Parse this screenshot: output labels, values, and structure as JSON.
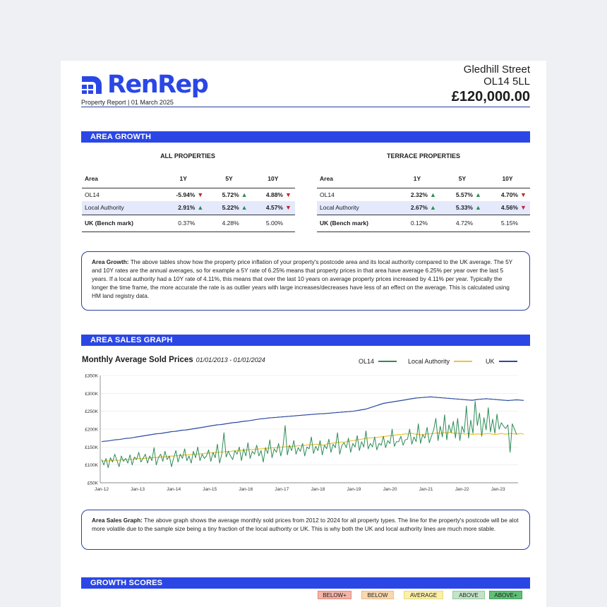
{
  "header": {
    "brand": "RenRep",
    "subtitle": "Property Report | 01 March 2025",
    "street": "Gledhill Street",
    "postcode": "OL14 5LL",
    "price": "£120,000.00",
    "brand_color": "#2a47e6"
  },
  "area_growth": {
    "banner": "AREA GROWTH",
    "tables": [
      {
        "title": "ALL PROPERTIES",
        "columns": [
          "Area",
          "1Y",
          "5Y",
          "10Y"
        ],
        "rows": [
          {
            "area": "OL14",
            "y1": "-5.94%",
            "y1_dir": "down",
            "y5": "5.72%",
            "y5_dir": "up",
            "y10": "4.88%",
            "y10_dir": "down"
          },
          {
            "area": "Local Authority",
            "y1": "2.91%",
            "y1_dir": "up",
            "y5": "5.22%",
            "y5_dir": "up",
            "y10": "4.57%",
            "y10_dir": "down"
          }
        ],
        "benchmark": {
          "area": "UK (Bench mark)",
          "y1": "0.37%",
          "y5": "4.28%",
          "y10": "5.00%"
        }
      },
      {
        "title": "TERRACE PROPERTIES",
        "columns": [
          "Area",
          "1Y",
          "5Y",
          "10Y"
        ],
        "rows": [
          {
            "area": "OL14",
            "y1": "2.32%",
            "y1_dir": "up",
            "y5": "5.57%",
            "y5_dir": "up",
            "y10": "4.70%",
            "y10_dir": "down"
          },
          {
            "area": "Local Authority",
            "y1": "2.67%",
            "y1_dir": "up",
            "y5": "5.33%",
            "y5_dir": "up",
            "y10": "4.56%",
            "y10_dir": "down"
          }
        ],
        "benchmark": {
          "area": "UK (Bench mark)",
          "y1": "0.12%",
          "y5": "4.72%",
          "y10": "5.15%"
        }
      }
    ],
    "note_lead": "Area Growth:",
    "note_text": " The above tables show how the property price inflation of your property's postcode area and its local authority compared to the UK average. The 5Y and 10Y rates are the annual averages, so for example a 5Y rate of 6.25% means that property prices in that area have average 6.25% per year over the last 5 years. If a local authority had a 10Y rate of 4.11%, this means that over the last 10 years on average property prices increased by 4.11% per year. Typically the longer the time frame, the more accurate the rate is as outlier years with large increases/decreases have less of an effect on the average. This is calculated using HM land registry data."
  },
  "sales_graph": {
    "banner": "AREA SALES GRAPH",
    "title": "Monthly Average Sold Prices",
    "range": "01/01/2013 - 01/01/2024",
    "note_lead": "Area Sales Graph:",
    "note_text": " The above graph shows the average monthly sold prices from 2012 to 2024 for all property types. The line for the property's postcode will be alot more volatile due to the sample size being a tiny fraction of the local authority or UK. This is why both the UK and local authority lines are much more stable."
  },
  "chart_data": {
    "type": "line",
    "x_labels": [
      "Jan-12",
      "Jan-13",
      "Jan-14",
      "Jan-15",
      "Jan-16",
      "Jan-17",
      "Jan-18",
      "Jan-19",
      "Jan-20",
      "Jan-21",
      "Jan-22",
      "Jan-23"
    ],
    "y_ticks": [
      "£50K",
      "£100K",
      "£150K",
      "£200K",
      "£250K",
      "£300K",
      "£350K"
    ],
    "ylim": [
      50000,
      350000
    ],
    "legend_position": "top-right",
    "series": [
      {
        "name": "OL14",
        "color": "#2e8b57",
        "values": [
          115000,
          100000,
          118000,
          92000,
          120000,
          108000,
          130000,
          112000,
          95000,
          125000,
          110000,
          118000,
          105000,
          128000,
          100000,
          122000,
          115000,
          135000,
          108000,
          118000,
          130000,
          105000,
          125000,
          112000,
          148000,
          100000,
          120000,
          130000,
          110000,
          138000,
          115000,
          125000,
          95000,
          120000,
          140000,
          108000,
          130000,
          118000,
          145000,
          112000,
          125000,
          105000,
          138000,
          120000,
          150000,
          112000,
          130000,
          118000,
          125000,
          142000,
          110000,
          135000,
          120000,
          158000,
          105000,
          130000,
          190000,
          122000,
          138000,
          125000,
          115000,
          140000,
          130000,
          150000,
          112000,
          145000,
          125000,
          162000,
          118000,
          138000,
          130000,
          155000,
          125000,
          140000,
          108000,
          148000,
          132000,
          170000,
          120000,
          145000,
          135000,
          160000,
          125000,
          150000,
          210000,
          128000,
          155000,
          140000,
          168000,
          130000,
          148000,
          138000,
          160000,
          125000,
          150000,
          145000,
          178000,
          132000,
          152000,
          140000,
          168000,
          128000,
          155000,
          145000,
          172000,
          135000,
          158000,
          148000,
          190000,
          130000,
          155000,
          162000,
          148000,
          175000,
          135000,
          160000,
          150000,
          182000,
          140000,
          165000,
          150000,
          195000,
          145000,
          160000,
          150000,
          178000,
          142000,
          160000,
          155000,
          180000,
          148000,
          168000,
          160000,
          200000,
          152000,
          165000,
          165000,
          180000,
          155000,
          170000,
          172000,
          200000,
          158000,
          178000,
          165000,
          215000,
          160000,
          185000,
          175000,
          205000,
          162000,
          180000,
          198000,
          230000,
          168000,
          208000,
          178000,
          240000,
          170000,
          212000,
          190000,
          222000,
          175000,
          230000,
          168000,
          208000,
          190000,
          265000,
          175000,
          225000,
          188000,
          278000,
          210000,
          245000,
          180000,
          232000,
          198000,
          260000,
          192000,
          228000,
          188000,
          242000,
          200000,
          218000,
          208000,
          202000,
          212000,
          135000,
          215000,
          200000,
          185000
        ]
      },
      {
        "name": "Local Authority",
        "color": "#f2c230",
        "values": [
          110000,
          111000,
          112000,
          110500,
          113000,
          112000,
          114000,
          113000,
          112500,
          115000,
          114000,
          115500,
          114500,
          116000,
          115000,
          117000,
          116500,
          118000,
          117000,
          118500,
          118000,
          119500,
          119000,
          120000,
          121000,
          120000,
          122000,
          121500,
          123000,
          122500,
          124000,
          123000,
          125000,
          124500,
          126000,
          125500,
          127000,
          126500,
          128000,
          127500,
          129000,
          128500,
          130000,
          129500,
          131000,
          130500,
          132000,
          131500,
          133000,
          132500,
          134000,
          133500,
          135000,
          134500,
          136000,
          135500,
          137000,
          136500,
          138000,
          137500,
          139000,
          138500,
          140000,
          139500,
          141000,
          140500,
          142000,
          141500,
          143000,
          142500,
          144000,
          143500,
          145000,
          144500,
          146000,
          145500,
          147000,
          146500,
          148000,
          147500,
          149000,
          148500,
          150000,
          149500,
          151000,
          150500,
          152000,
          151500,
          153000,
          152500,
          154000,
          153500,
          155000,
          154500,
          156000,
          155500,
          157000,
          156500,
          158000,
          157500,
          158000,
          155000,
          156000,
          158000,
          160000,
          159000,
          162000,
          161000,
          163000,
          162500,
          164000,
          163500,
          165000,
          166000,
          167000,
          168000,
          169000,
          170000,
          171000,
          172000,
          173000,
          174000,
          175000,
          175500,
          176000,
          177000,
          176500,
          178000,
          178500,
          179000,
          180000,
          181000,
          182000,
          181500,
          183000,
          184000,
          185000,
          184500,
          186000,
          187000,
          186000,
          188000,
          188500,
          187000,
          185000,
          186000,
          184000,
          185500,
          186000,
          187000,
          186500,
          188000,
          187500,
          189000,
          190000,
          188000,
          189500,
          190500,
          189000,
          191000,
          190000,
          189000,
          188000,
          189000,
          187000,
          188000,
          186000,
          187000,
          188000,
          186000,
          185000,
          186000,
          187000,
          186000,
          185000,
          186500,
          187000,
          188000,
          187000,
          186000,
          185000,
          186000,
          187000,
          188000,
          187000,
          186000,
          187000,
          188000,
          187500,
          187000,
          186000,
          187000,
          188000,
          186000,
          187000,
          185000,
          186000
        ]
      },
      {
        "name": "UK",
        "color": "#2b4a9f",
        "values": [
          165000,
          166000,
          166500,
          167000,
          168000,
          169000,
          170000,
          170500,
          171000,
          172000,
          173000,
          174000,
          174500,
          175000,
          176000,
          177000,
          178000,
          179000,
          180000,
          181000,
          182000,
          183000,
          184000,
          185000,
          186000,
          187000,
          187500,
          188000,
          189000,
          190000,
          191000,
          192000,
          193000,
          193500,
          194000,
          195000,
          196000,
          197000,
          197500,
          198000,
          199000,
          200000,
          201000,
          202000,
          203000,
          204000,
          205000,
          206000,
          207000,
          208000,
          209000,
          210000,
          211000,
          212000,
          212500,
          213000,
          214000,
          215000,
          216000,
          217000,
          218000,
          218500,
          219000,
          220000,
          221000,
          222000,
          222500,
          223000,
          224000,
          225000,
          226000,
          227000,
          228000,
          229000,
          229500,
          230000,
          231000,
          231500,
          232000,
          232500,
          233000,
          233500,
          234000,
          234500,
          235000,
          235500,
          236000,
          236500,
          237000,
          237500,
          238000,
          238500,
          239000,
          239500,
          240000,
          240500,
          241000,
          241500,
          242000,
          242500,
          243000,
          243000,
          243500,
          244000,
          244500,
          245000,
          245500,
          246000,
          246500,
          247000,
          247500,
          248000,
          248500,
          249000,
          249500,
          250000,
          251000,
          252000,
          253000,
          254000,
          255000,
          256000,
          258000,
          260000,
          262000,
          264000,
          266000,
          268000,
          270000,
          272000,
          273000,
          274000,
          275000,
          276000,
          277000,
          278000,
          279000,
          280000,
          281000,
          282000,
          283000,
          284000,
          285000,
          286000,
          287000,
          287500,
          288000,
          288500,
          289000,
          289500,
          290000,
          290000,
          289500,
          289000,
          288500,
          288000,
          287500,
          287000,
          286500,
          286000,
          285500,
          285000,
          284500,
          284000,
          283500,
          283000,
          282500,
          282000,
          281500,
          281000,
          281000,
          282000,
          283000,
          283500,
          284000,
          284500,
          285000,
          284500,
          284000,
          283500,
          283000,
          282500,
          282000,
          281500,
          281000,
          280500,
          280000,
          280500,
          281000,
          281500,
          282000,
          281500,
          281000,
          280500,
          280000
        ]
      }
    ]
  },
  "growth_scores": {
    "banner": "GROWTH SCORES",
    "badges": [
      {
        "label": "BELOW+",
        "bg": "#f4b4a8",
        "border": "#e08979"
      },
      {
        "label": "BELOW",
        "bg": "#f9d8b0",
        "border": "#ecbb84"
      },
      {
        "label": "AVERAGE",
        "bg": "#faf0a8",
        "border": "#e7d97c"
      },
      {
        "label": "ABOVE",
        "bg": "#c3e3c8",
        "border": "#94c99c"
      },
      {
        "label": "ABOVE+",
        "bg": "#5fbf76",
        "border": "#3f9f56"
      }
    ]
  }
}
